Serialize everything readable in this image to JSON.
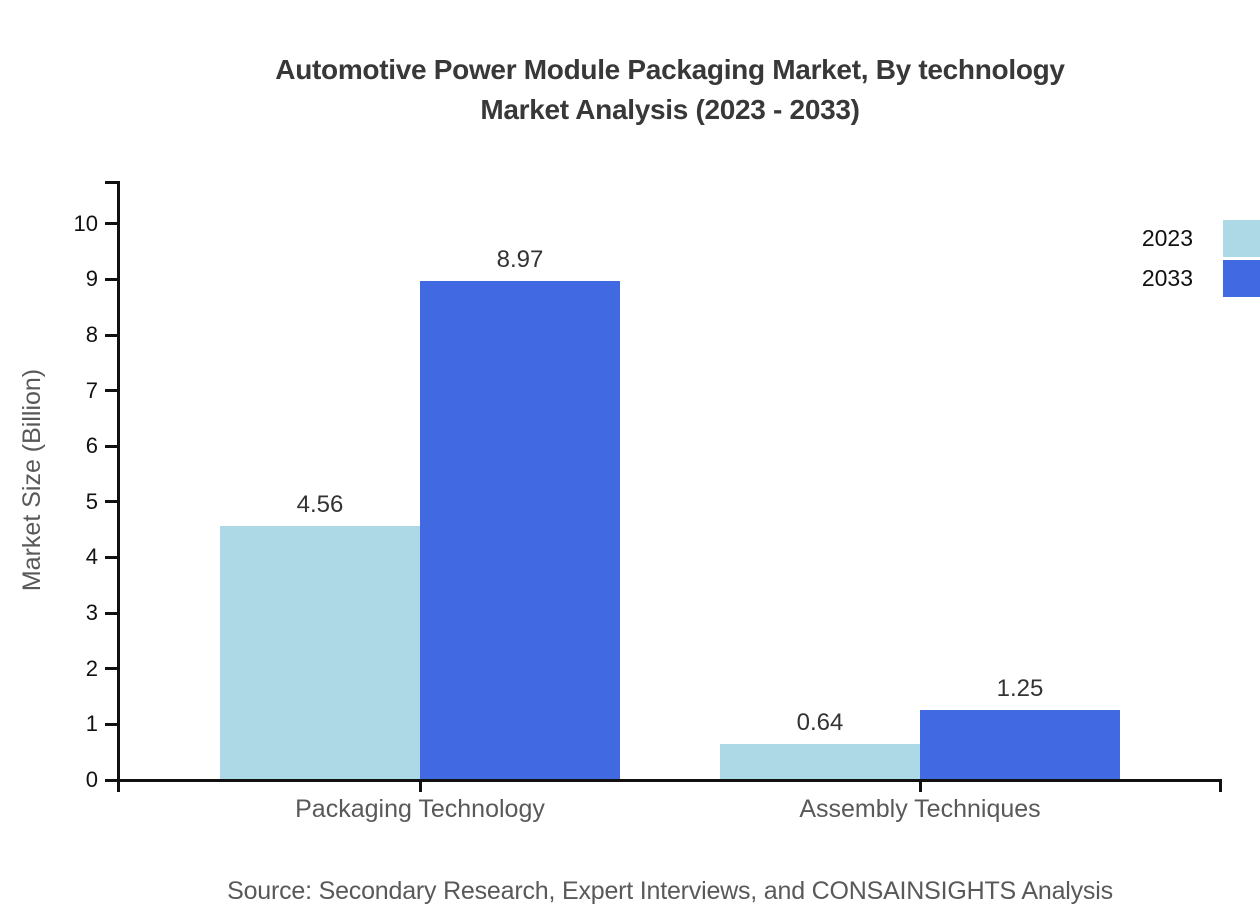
{
  "title": {
    "line1": "Automotive Power Module Packaging Market, By technology",
    "line2": "Market Analysis (2023 - 2033)"
  },
  "source": "Source: Secondary Research, Expert Interviews, and CONSAINSIGHTS Analysis",
  "legend": {
    "position": "top-right",
    "items": [
      {
        "label": "2023",
        "color": "#ADD8E6"
      },
      {
        "label": "2033",
        "color": "#4169E1"
      }
    ]
  },
  "chart_data": {
    "type": "bar",
    "title": "Automotive Power Module Packaging Market, By technology Market Analysis (2023 - 2033)",
    "categories": [
      "Packaging Technology",
      "Assembly Techniques"
    ],
    "series": [
      {
        "name": "2023",
        "color": "#ADD8E6",
        "values": [
          4.56,
          0.64
        ]
      },
      {
        "name": "2033",
        "color": "#4169E1",
        "values": [
          8.97,
          1.25
        ]
      }
    ],
    "value_labels": [
      "4.56",
      "8.97",
      "0.64",
      "1.25"
    ],
    "xlabel": "",
    "ylabel": "Market Size (Billion)",
    "ylim": [
      0,
      10
    ],
    "yticks": [
      0,
      1,
      2,
      3,
      4,
      5,
      6,
      7,
      8,
      9,
      10
    ],
    "grid": false,
    "legend_position": "top-right"
  },
  "colors": {
    "axis": "#111111",
    "title_text": "#383838",
    "muted_text": "#595959",
    "value_text": "#333333"
  }
}
